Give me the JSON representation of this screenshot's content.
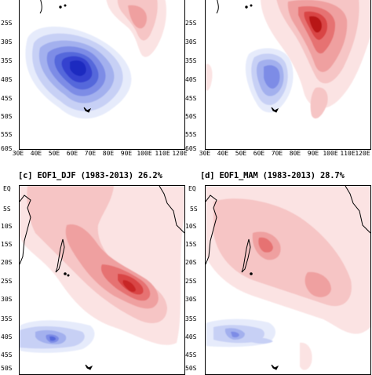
{
  "panels": {
    "a": {
      "lat_labels": [
        "25S",
        "30S",
        "35S",
        "40S",
        "45S",
        "50S",
        "55S",
        "60S"
      ]
    },
    "b": {
      "lat_labels": [
        "25S",
        "30S",
        "35S",
        "40S",
        "45S",
        "50S",
        "55S",
        "60S"
      ]
    },
    "c": {
      "title": "[c] EOF1_DJF (1983-2013) 26.2%",
      "lat_labels": [
        "EQ",
        "5S",
        "10S",
        "15S",
        "20S",
        "25S",
        "30S",
        "35S",
        "40S",
        "45S",
        "50S"
      ]
    },
    "d": {
      "title": "[d] EOF1_MAM (1983-2013) 28.7%",
      "lat_labels": [
        "EQ",
        "5S",
        "10S",
        "15S",
        "20S",
        "25S",
        "30S",
        "35S",
        "40S",
        "45S",
        "50S"
      ]
    }
  },
  "lon_labels": [
    "30E",
    "40E",
    "50E",
    "60E",
    "70E",
    "80E",
    "90E",
    "100E",
    "110E",
    "120E"
  ],
  "colors": {
    "warm": "#c81a1a",
    "cool": "#1f2ecc",
    "land_outline": "#000000"
  }
}
